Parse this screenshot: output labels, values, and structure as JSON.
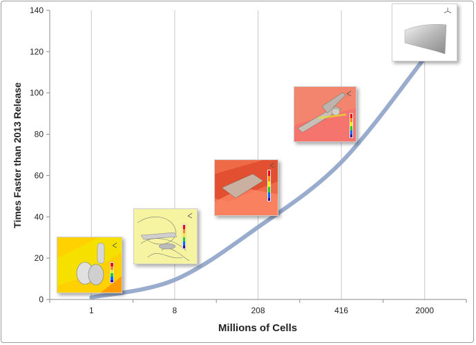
{
  "chart_data": {
    "type": "line",
    "categories": [
      "1",
      "8",
      "208",
      "416",
      "2000"
    ],
    "values": [
      1,
      9.5,
      35,
      66.5,
      117
    ],
    "title": "",
    "xlabel": "Millions of Cells",
    "ylabel": "Times Faster than 2013 Release",
    "ylim": [
      0,
      140
    ],
    "yticks": [
      0,
      20,
      40,
      60,
      80,
      100,
      120,
      140
    ],
    "grid": "vertical",
    "line_color": "#8ea3c8",
    "annotations": [
      "simulation-thumbnail-1M",
      "simulation-thumbnail-8M",
      "simulation-thumbnail-208M",
      "simulation-thumbnail-416M",
      "simulation-thumbnail-2000M"
    ]
  }
}
